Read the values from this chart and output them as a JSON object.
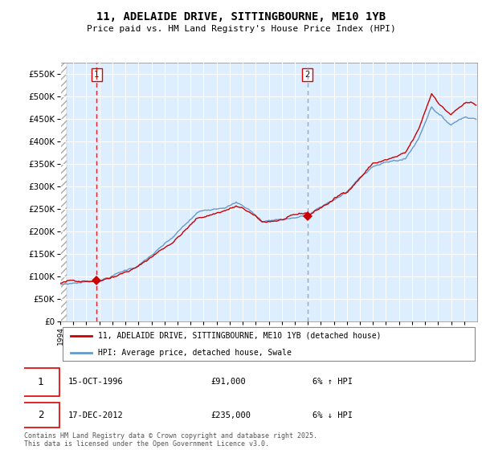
{
  "title": "11, ADELAIDE DRIVE, SITTINGBOURNE, ME10 1YB",
  "subtitle": "Price paid vs. HM Land Registry's House Price Index (HPI)",
  "x_start_year": 1994,
  "x_end_year": 2026,
  "ylim": [
    0,
    575000
  ],
  "yticks": [
    0,
    50000,
    100000,
    150000,
    200000,
    250000,
    300000,
    350000,
    400000,
    450000,
    500000,
    550000
  ],
  "purchase1_year": 1996.79,
  "purchase1_price": 91000,
  "purchase2_year": 2012.96,
  "purchase2_price": 235000,
  "legend_line1": "11, ADELAIDE DRIVE, SITTINGBOURNE, ME10 1YB (detached house)",
  "legend_line2": "HPI: Average price, detached house, Swale",
  "annotation1_date": "15-OCT-1996",
  "annotation1_price": "£91,000",
  "annotation1_note": "6% ↑ HPI",
  "annotation2_date": "17-DEC-2012",
  "annotation2_price": "£235,000",
  "annotation2_note": "6% ↓ HPI",
  "footer": "Contains HM Land Registry data © Crown copyright and database right 2025.\nThis data is licensed under the Open Government Licence v3.0.",
  "line_color_red": "#cc0000",
  "line_color_blue": "#6699cc",
  "bg_hatch_color": "#cccccc",
  "bg_plot_color": "#ddeeff",
  "grid_color": "#ffffff",
  "vline1_color": "#dd0000",
  "vline2_color": "#8899bb"
}
